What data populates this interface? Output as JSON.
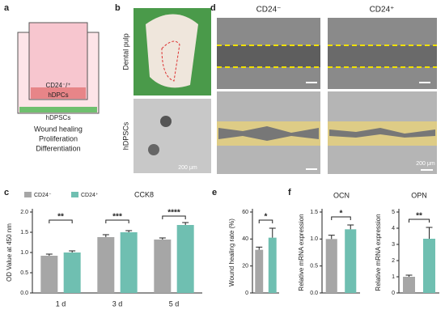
{
  "figure": {
    "panel_labels": [
      "a",
      "b",
      "c",
      "d",
      "e",
      "f"
    ],
    "a": {
      "labels": [
        "CD24⁻/⁺",
        "hDPCs",
        "hDPSCs"
      ],
      "caption": [
        "Wound healing",
        "Proliferation",
        "Differentiation"
      ]
    },
    "b": {
      "row_labels": [
        "Dental pulp",
        "hDPSCs"
      ],
      "scale": "200 μm"
    },
    "d": {
      "column_labels": [
        "CD24⁻",
        "CD24⁺"
      ],
      "scale": "200 μm"
    }
  },
  "chart_data": [
    {
      "type": "bar",
      "title": "CCK8",
      "ylabel": "OD Value at 450 nm",
      "categories": [
        "1 d",
        "3 d",
        "5 d"
      ],
      "series": [
        {
          "name": "CD24⁻",
          "color": "#a6a6a6",
          "values": [
            0.92,
            1.38,
            1.32
          ],
          "errors": [
            0.04,
            0.06,
            0.04
          ]
        },
        {
          "name": "CD24⁺",
          "color": "#6fbfb1",
          "values": [
            1.0,
            1.5,
            1.68
          ],
          "errors": [
            0.04,
            0.04,
            0.06
          ]
        }
      ],
      "annotations": [
        "**",
        "***",
        "****"
      ],
      "ylim": [
        0,
        2
      ],
      "yticks": [
        {
          "value": 0,
          "label": "0.0"
        },
        0.5,
        {
          "value": 1,
          "label": "1.0"
        },
        1.5,
        {
          "value": 2,
          "label": "2.0"
        }
      ]
    },
    {
      "type": "bar",
      "ylabel": "Wound healing rate (%)",
      "categories": [
        null,
        null
      ],
      "values": [
        32,
        41
      ],
      "errors": [
        2,
        7
      ],
      "colors": [
        "#a6a6a6",
        "#6fbfb1"
      ],
      "annotations": [
        "*"
      ],
      "ylim": [
        0,
        60
      ],
      "yticks": [
        0,
        20,
        40,
        60
      ]
    },
    {
      "type": "bar",
      "title": "OCN",
      "ylabel": "Relative mRNA expression",
      "categories": [
        null,
        null
      ],
      "values": [
        1.0,
        1.18
      ],
      "errors": [
        0.07,
        0.08
      ],
      "colors": [
        "#a6a6a6",
        "#6fbfb1"
      ],
      "annotations": [
        "*"
      ],
      "ylim": [
        0,
        1.5
      ],
      "yticks": [
        {
          "value": 0,
          "label": "0.0"
        },
        0.5,
        {
          "value": 1,
          "label": "1.0"
        },
        1.5
      ]
    },
    {
      "type": "bar",
      "title": "OPN",
      "ylabel": "Relative mRNA expression",
      "categories": [
        null,
        null
      ],
      "values": [
        1.0,
        3.35
      ],
      "errors": [
        0.1,
        0.7
      ],
      "colors": [
        "#a6a6a6",
        "#6fbfb1"
      ],
      "annotations": [
        "**"
      ],
      "ylim": [
        0,
        5
      ],
      "yticks": [
        0,
        1,
        2,
        3,
        4,
        5
      ]
    }
  ]
}
